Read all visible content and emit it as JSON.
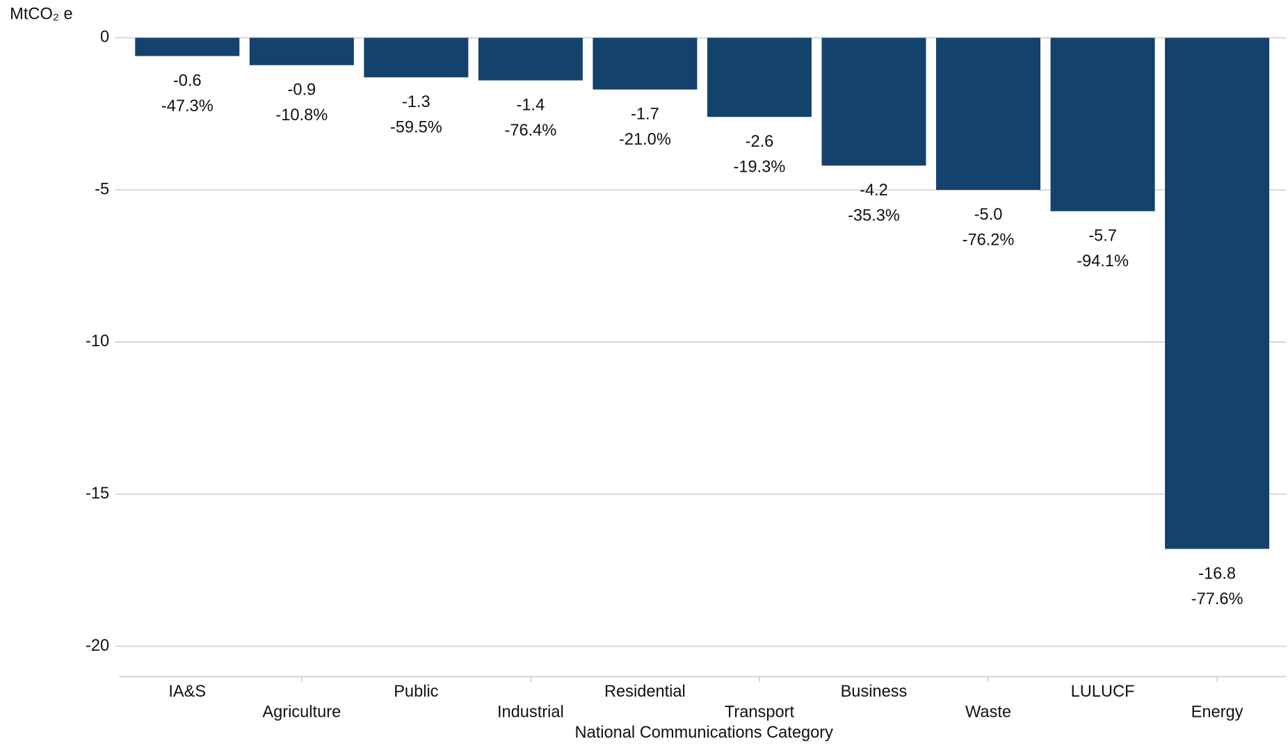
{
  "chart_data": {
    "type": "bar",
    "y_axis_label": "MtCO₂ e",
    "x_axis_label": "National Communications Category",
    "categories": [
      "IA&S",
      "Agriculture",
      "Public",
      "Industrial",
      "Residential",
      "Transport",
      "Business",
      "Waste",
      "LULUCF",
      "Energy"
    ],
    "values": [
      -0.6,
      -0.9,
      -1.3,
      -1.4,
      -1.7,
      -2.6,
      -4.2,
      -5.0,
      -5.7,
      -16.8
    ],
    "value_labels": [
      "-0.6",
      "-0.9",
      "-1.3",
      "-1.4",
      "-1.7",
      "-2.6",
      "-4.2",
      "-5.0",
      "-5.7",
      "-16.8"
    ],
    "percent_labels": [
      "-47.3%",
      "-10.8%",
      "-59.5%",
      "-76.4%",
      "-21.0%",
      "-19.3%",
      "-35.3%",
      "-76.2%",
      "-94.1%",
      "-77.6%"
    ],
    "color": "#13426d",
    "ylim": [
      -21,
      0
    ],
    "yticks": [
      0,
      -5,
      -10,
      -15,
      -20
    ],
    "grid": true
  }
}
